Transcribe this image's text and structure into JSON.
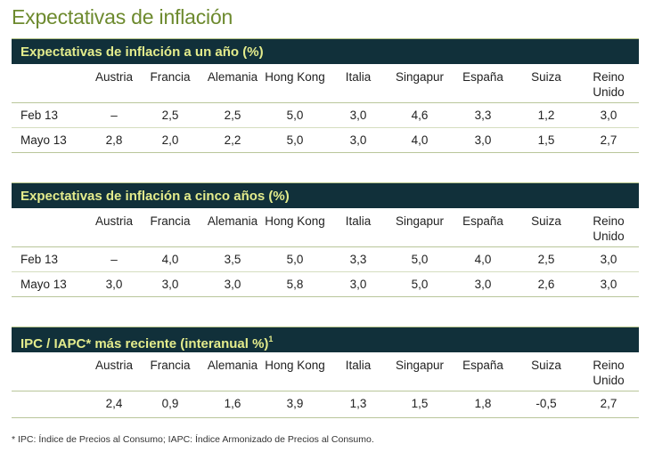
{
  "title": "Expectativas de inflación",
  "sections": [
    {
      "title": "Expectativas de inflación a un año (%)",
      "columns": [
        "Austria",
        "Francia",
        "Alemania",
        "Hong Kong",
        "Italia",
        "Singapur",
        "España",
        "Suiza",
        "Reino Unido"
      ],
      "rows": [
        {
          "label": "Feb 13",
          "values": [
            "–",
            "2,5",
            "2,5",
            "5,0",
            "3,0",
            "4,6",
            "3,3",
            "1,2",
            "3,0"
          ]
        },
        {
          "label": "Mayo 13",
          "values": [
            "2,8",
            "2,0",
            "2,2",
            "5,0",
            "3,0",
            "4,0",
            "3,0",
            "1,5",
            "2,7"
          ]
        }
      ]
    },
    {
      "title": "Expectativas de inflación a cinco años (%)",
      "columns": [
        "Austria",
        "Francia",
        "Alemania",
        "Hong Kong",
        "Italia",
        "Singapur",
        "España",
        "Suiza",
        "Reino Unido"
      ],
      "rows": [
        {
          "label": "Feb 13",
          "values": [
            "–",
            "4,0",
            "3,5",
            "5,0",
            "3,3",
            "5,0",
            "4,0",
            "2,5",
            "3,0"
          ]
        },
        {
          "label": "Mayo 13",
          "values": [
            "3,0",
            "3,0",
            "3,0",
            "5,8",
            "3,0",
            "5,0",
            "3,0",
            "2,6",
            "3,0"
          ]
        }
      ]
    },
    {
      "title": "IPC / IAPC* más reciente (interanual %)",
      "title_sup": "1",
      "columns": [
        "Austria",
        "Francia",
        "Alemania",
        "Hong Kong",
        "Italia",
        "Singapur",
        "España",
        "Suiza",
        "Reino Unido"
      ],
      "rows": [
        {
          "label": "",
          "values": [
            "2,4",
            "0,9",
            "1,6",
            "3,9",
            "1,3",
            "1,5",
            "1,8",
            "-0,5",
            "2,7"
          ]
        }
      ]
    }
  ],
  "footnote": "* IPC: Índice de Precios al Consumo; IAPC: Índice Armonizado de Precios al Consumo."
}
